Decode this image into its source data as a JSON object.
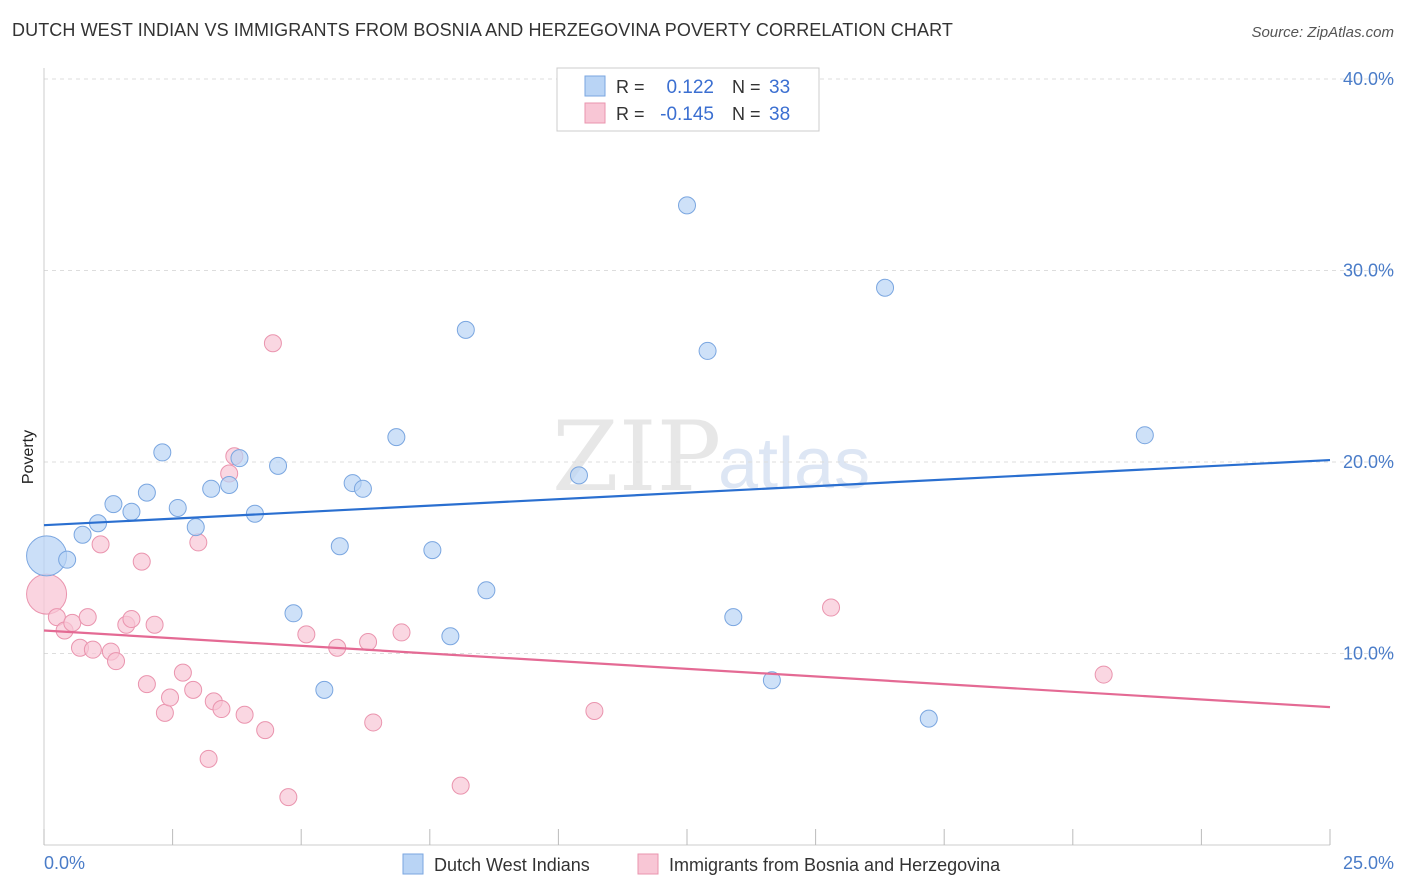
{
  "title": "DUTCH WEST INDIAN VS IMMIGRANTS FROM BOSNIA AND HERZEGOVINA POVERTY CORRELATION CHART",
  "source": "Source: ZipAtlas.com",
  "watermark": {
    "zip": "ZIP",
    "atlas": "atlas"
  },
  "legend": {
    "r_label": "R =",
    "n_label": "N =",
    "rows": [
      {
        "r": "0.122",
        "n": "33"
      },
      {
        "r": "-0.145",
        "n": "38"
      }
    ]
  },
  "colors": {
    "blue_fill": "#b9d4f5",
    "blue_stroke": "#7aa6e0",
    "blue_line": "#2a6fd0",
    "pink_fill": "#f8c6d5",
    "pink_stroke": "#ea94ae",
    "pink_line": "#e46a94",
    "grid": "#dddddd",
    "tick_text": "#4a7cc8"
  },
  "chart_data": {
    "type": "scatter",
    "title": "DUTCH WEST INDIAN VS IMMIGRANTS FROM BOSNIA AND HERZEGOVINA POVERTY CORRELATION CHART",
    "xlabel": "",
    "ylabel": "Poverty",
    "xlim": [
      0,
      25
    ],
    "ylim": [
      0,
      40
    ],
    "x_tick_labels": [
      "0.0%",
      "25.0%"
    ],
    "y_ticks": [
      10,
      20,
      30,
      40
    ],
    "y_tick_labels": [
      "10.0%",
      "20.0%",
      "30.0%",
      "40.0%"
    ],
    "grid": true,
    "legend_position": "top-center",
    "series": [
      {
        "name": "Dutch West Indians",
        "r": 0.122,
        "n": 33,
        "trend": {
          "x0": 0,
          "y0": 16.7,
          "x1": 25,
          "y1": 20.1
        },
        "points": [
          {
            "x": 0.05,
            "y": 15.1,
            "big": true
          },
          {
            "x": 0.45,
            "y": 14.9
          },
          {
            "x": 0.75,
            "y": 16.2
          },
          {
            "x": 1.05,
            "y": 16.8
          },
          {
            "x": 1.35,
            "y": 17.8
          },
          {
            "x": 1.7,
            "y": 17.4
          },
          {
            "x": 2.0,
            "y": 18.4
          },
          {
            "x": 2.3,
            "y": 20.5
          },
          {
            "x": 2.6,
            "y": 17.6
          },
          {
            "x": 2.95,
            "y": 16.6
          },
          {
            "x": 3.25,
            "y": 18.6
          },
          {
            "x": 3.6,
            "y": 18.8
          },
          {
            "x": 3.8,
            "y": 20.2
          },
          {
            "x": 4.1,
            "y": 17.3
          },
          {
            "x": 4.55,
            "y": 19.8
          },
          {
            "x": 4.85,
            "y": 12.1
          },
          {
            "x": 5.45,
            "y": 8.1
          },
          {
            "x": 5.75,
            "y": 15.6
          },
          {
            "x": 6.0,
            "y": 18.9
          },
          {
            "x": 6.2,
            "y": 18.6
          },
          {
            "x": 6.85,
            "y": 21.3
          },
          {
            "x": 7.55,
            "y": 15.4
          },
          {
            "x": 7.9,
            "y": 10.9
          },
          {
            "x": 8.2,
            "y": 26.9
          },
          {
            "x": 8.6,
            "y": 13.3
          },
          {
            "x": 10.4,
            "y": 19.3
          },
          {
            "x": 12.5,
            "y": 33.4
          },
          {
            "x": 12.9,
            "y": 25.8
          },
          {
            "x": 13.4,
            "y": 11.9
          },
          {
            "x": 14.15,
            "y": 8.6
          },
          {
            "x": 16.35,
            "y": 29.1
          },
          {
            "x": 17.2,
            "y": 6.6
          },
          {
            "x": 21.4,
            "y": 21.4
          }
        ]
      },
      {
        "name": "Immigrants from Bosnia and Herzegovina",
        "r": -0.145,
        "n": 38,
        "trend": {
          "x0": 0,
          "y0": 11.2,
          "x1": 25,
          "y1": 7.2
        },
        "points": [
          {
            "x": 0.05,
            "y": 13.1,
            "big": true
          },
          {
            "x": 0.25,
            "y": 11.9
          },
          {
            "x": 0.4,
            "y": 11.2
          },
          {
            "x": 0.55,
            "y": 11.6
          },
          {
            "x": 0.7,
            "y": 10.3
          },
          {
            "x": 0.85,
            "y": 11.9
          },
          {
            "x": 0.95,
            "y": 10.2
          },
          {
            "x": 1.1,
            "y": 15.7
          },
          {
            "x": 1.3,
            "y": 10.1
          },
          {
            "x": 1.4,
            "y": 9.6
          },
          {
            "x": 1.6,
            "y": 11.5
          },
          {
            "x": 1.7,
            "y": 11.8
          },
          {
            "x": 1.9,
            "y": 14.8
          },
          {
            "x": 2.0,
            "y": 8.4
          },
          {
            "x": 2.15,
            "y": 11.5
          },
          {
            "x": 2.35,
            "y": 6.9
          },
          {
            "x": 2.45,
            "y": 7.7
          },
          {
            "x": 2.7,
            "y": 9.0
          },
          {
            "x": 2.9,
            "y": 8.1
          },
          {
            "x": 3.0,
            "y": 15.8
          },
          {
            "x": 3.2,
            "y": 4.5
          },
          {
            "x": 3.3,
            "y": 7.5
          },
          {
            "x": 3.45,
            "y": 7.1
          },
          {
            "x": 3.6,
            "y": 19.4
          },
          {
            "x": 3.7,
            "y": 20.3
          },
          {
            "x": 3.9,
            "y": 6.8
          },
          {
            "x": 4.3,
            "y": 6.0
          },
          {
            "x": 4.45,
            "y": 26.2
          },
          {
            "x": 4.75,
            "y": 2.5
          },
          {
            "x": 5.1,
            "y": 11.0
          },
          {
            "x": 5.7,
            "y": 10.3
          },
          {
            "x": 6.3,
            "y": 10.6
          },
          {
            "x": 6.4,
            "y": 6.4
          },
          {
            "x": 6.95,
            "y": 11.1
          },
          {
            "x": 8.1,
            "y": 3.1
          },
          {
            "x": 10.7,
            "y": 7.0
          },
          {
            "x": 15.3,
            "y": 12.4
          },
          {
            "x": 20.6,
            "y": 8.9
          }
        ]
      }
    ]
  }
}
